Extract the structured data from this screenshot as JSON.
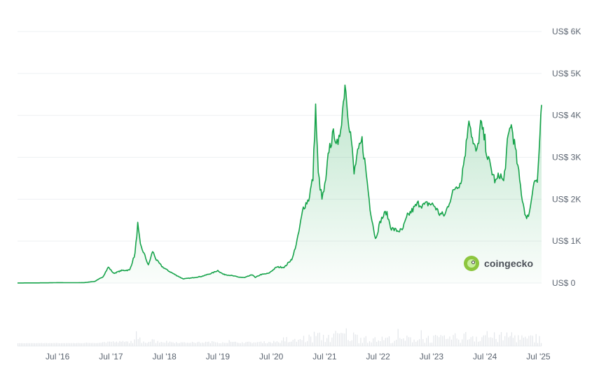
{
  "chart_data": {
    "type": "area",
    "title": "",
    "xlabel": "",
    "ylabel": "",
    "x_range": [
      2015.75,
      2025.56
    ],
    "ylim": [
      0,
      6000
    ],
    "grid": true,
    "y_ticks": [
      {
        "value": 0,
        "label": "US$ 0"
      },
      {
        "value": 1000,
        "label": "US$ 1K"
      },
      {
        "value": 2000,
        "label": "US$ 2K"
      },
      {
        "value": 3000,
        "label": "US$ 3K"
      },
      {
        "value": 4000,
        "label": "US$ 4K"
      },
      {
        "value": 5000,
        "label": "US$ 5K"
      },
      {
        "value": 6000,
        "label": "US$ 6K"
      }
    ],
    "x_ticks": [
      {
        "value": 2016.5,
        "label": "Jul '16"
      },
      {
        "value": 2017.5,
        "label": "Jul '17"
      },
      {
        "value": 2018.5,
        "label": "Jul '18"
      },
      {
        "value": 2019.5,
        "label": "Jul '19"
      },
      {
        "value": 2020.5,
        "label": "Jul '20"
      },
      {
        "value": 2021.5,
        "label": "Jul '21"
      },
      {
        "value": 2022.5,
        "label": "Jul '22"
      },
      {
        "value": 2023.5,
        "label": "Jul '23"
      },
      {
        "value": 2024.5,
        "label": "Jul '24"
      },
      {
        "value": 2025.5,
        "label": "Jul '25"
      }
    ],
    "series": [
      {
        "values": [
          [
            2015.75,
            2
          ],
          [
            2016.0,
            3
          ],
          [
            2016.3,
            5
          ],
          [
            2016.5,
            10
          ],
          [
            2016.8,
            8
          ],
          [
            2017.0,
            10
          ],
          [
            2017.2,
            40
          ],
          [
            2017.35,
            150
          ],
          [
            2017.45,
            380
          ],
          [
            2017.55,
            230
          ],
          [
            2017.7,
            300
          ],
          [
            2017.85,
            310
          ],
          [
            2017.95,
            700
          ],
          [
            2018.0,
            1400
          ],
          [
            2018.05,
            900
          ],
          [
            2018.12,
            700
          ],
          [
            2018.2,
            420
          ],
          [
            2018.28,
            760
          ],
          [
            2018.35,
            550
          ],
          [
            2018.45,
            400
          ],
          [
            2018.55,
            310
          ],
          [
            2018.7,
            200
          ],
          [
            2018.85,
            100
          ],
          [
            2019.0,
            120
          ],
          [
            2019.2,
            160
          ],
          [
            2019.4,
            240
          ],
          [
            2019.5,
            300
          ],
          [
            2019.6,
            210
          ],
          [
            2019.75,
            180
          ],
          [
            2019.9,
            140
          ],
          [
            2020.0,
            130
          ],
          [
            2020.15,
            200
          ],
          [
            2020.2,
            130
          ],
          [
            2020.3,
            200
          ],
          [
            2020.45,
            230
          ],
          [
            2020.6,
            380
          ],
          [
            2020.75,
            380
          ],
          [
            2020.9,
            600
          ],
          [
            2021.0,
            1100
          ],
          [
            2021.1,
            1800
          ],
          [
            2021.2,
            2000
          ],
          [
            2021.28,
            2500
          ],
          [
            2021.33,
            4200
          ],
          [
            2021.38,
            2600
          ],
          [
            2021.45,
            2000
          ],
          [
            2021.52,
            2400
          ],
          [
            2021.58,
            3200
          ],
          [
            2021.68,
            3600
          ],
          [
            2021.75,
            3200
          ],
          [
            2021.85,
            4300
          ],
          [
            2021.88,
            4800
          ],
          [
            2021.95,
            3900
          ],
          [
            2022.0,
            3400
          ],
          [
            2022.05,
            2600
          ],
          [
            2022.1,
            3000
          ],
          [
            2022.2,
            3400
          ],
          [
            2022.28,
            2600
          ],
          [
            2022.35,
            1800
          ],
          [
            2022.45,
            1050
          ],
          [
            2022.55,
            1500
          ],
          [
            2022.65,
            1700
          ],
          [
            2022.75,
            1300
          ],
          [
            2022.85,
            1250
          ],
          [
            2022.95,
            1250
          ],
          [
            2023.05,
            1600
          ],
          [
            2023.15,
            1750
          ],
          [
            2023.25,
            1900
          ],
          [
            2023.35,
            1850
          ],
          [
            2023.45,
            1900
          ],
          [
            2023.55,
            1850
          ],
          [
            2023.65,
            1650
          ],
          [
            2023.75,
            1620
          ],
          [
            2023.85,
            2000
          ],
          [
            2023.95,
            2300
          ],
          [
            2024.05,
            2400
          ],
          [
            2024.15,
            3300
          ],
          [
            2024.2,
            4000
          ],
          [
            2024.28,
            3300
          ],
          [
            2024.35,
            3100
          ],
          [
            2024.42,
            3800
          ],
          [
            2024.5,
            3400
          ],
          [
            2024.55,
            3000
          ],
          [
            2024.62,
            2700
          ],
          [
            2024.7,
            2400
          ],
          [
            2024.78,
            2600
          ],
          [
            2024.85,
            2400
          ],
          [
            2024.92,
            3300
          ],
          [
            2024.98,
            3800
          ],
          [
            2025.02,
            3600
          ],
          [
            2025.1,
            2900
          ],
          [
            2025.2,
            2000
          ],
          [
            2025.28,
            1500
          ],
          [
            2025.35,
            1800
          ],
          [
            2025.42,
            2500
          ],
          [
            2025.48,
            2400
          ],
          [
            2025.53,
            3500
          ],
          [
            2025.56,
            4250
          ]
        ]
      }
    ],
    "volume_seed": 7
  },
  "colors": {
    "line": "#16a34a",
    "fill_top": "#16a34a",
    "grid": "#eef0f3",
    "volume": "#e3e6ea"
  },
  "brand": {
    "icon": "coingecko-gecko-icon",
    "text": "coingecko"
  }
}
